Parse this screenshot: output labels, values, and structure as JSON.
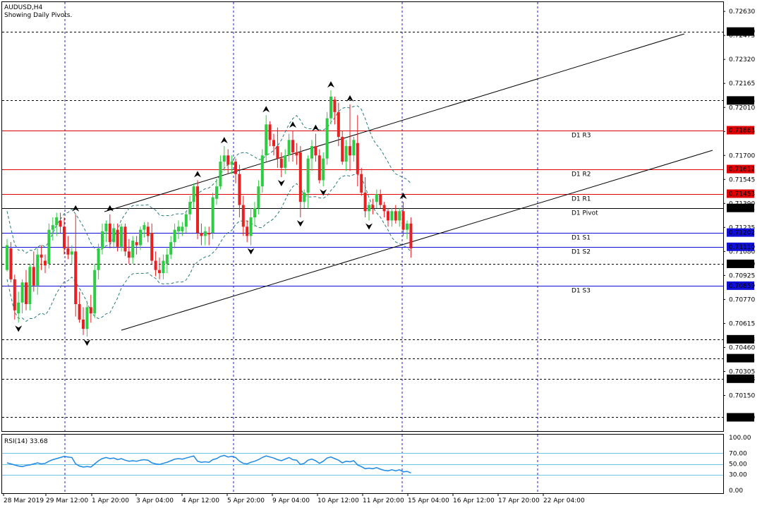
{
  "header": {
    "symbol": "AUDUSD,H4",
    "subtitle": "Showing Daily Pivots."
  },
  "indicator": {
    "label": "RSI(14) 33.68"
  },
  "colors": {
    "bull": "#2ecc40",
    "bear": "#e82020",
    "grid": "#1f1fd0",
    "channel": "#000000",
    "bands": "#2a7a7a",
    "rsi": "#1e88e5",
    "rsi_levels": "#6ec6e6",
    "tag_red": "#e00000",
    "tag_blue": "#1010d8",
    "tag_black": "#000000"
  },
  "chart_data": [
    {
      "type": "candlestick",
      "title": "AUDUSD,H4",
      "subtitle": "Showing Daily Pivots.",
      "ylim": [
        0.6992,
        0.7269
      ],
      "x_tick_labels": [
        "28 Mar 2019",
        "29 Mar 12:00",
        "1 Apr 20:00",
        "3 Apr 04:00",
        "4 Apr 12:00",
        "5 Apr 20:00",
        "9 Apr 04:00",
        "10 Apr 12:00",
        "11 Apr 20:00",
        "15 Apr 04:00",
        "16 Apr 12:00",
        "17 Apr 20:00",
        "22 Apr 04:00"
      ],
      "y_tick_labels": [
        "0.72630",
        "0.72475",
        "0.72320",
        "0.72165",
        "0.72010",
        "0.71855",
        "0.71700",
        "0.71545",
        "0.71390",
        "0.71235",
        "0.71080",
        "0.70925",
        "0.70770",
        "0.70615",
        "0.70460",
        "0.70305",
        "0.70150"
      ],
      "price_tags": [
        {
          "value": "0.72500",
          "color": "black"
        },
        {
          "value": "0.72055",
          "color": "black"
        },
        {
          "value": "0.71863",
          "color": "red"
        },
        {
          "value": "0.71612",
          "color": "red"
        },
        {
          "value": "0.71453",
          "color": "red"
        },
        {
          "value": "0.71361",
          "color": "black"
        },
        {
          "value": "0.71202",
          "color": "blue"
        },
        {
          "value": "0.71110",
          "color": "blue"
        },
        {
          "value": "0.71000",
          "color": "black"
        },
        {
          "value": "0.70859",
          "color": "blue"
        },
        {
          "value": "0.70513",
          "color": "black"
        },
        {
          "value": "0.70391",
          "color": "black"
        },
        {
          "value": "0.70258",
          "color": "black"
        },
        {
          "value": "0.70009",
          "color": "black"
        }
      ],
      "pivot_lines": [
        {
          "label": "D1 R3",
          "value": 0.71863,
          "color": "red"
        },
        {
          "label": "D1 R2",
          "value": 0.71612,
          "color": "red"
        },
        {
          "label": "D1 R1",
          "value": 0.71453,
          "color": "red"
        },
        {
          "label": "D1 Pivot",
          "value": 0.71361,
          "color": "black"
        },
        {
          "label": "D1 S1",
          "value": 0.71202,
          "color": "blue"
        },
        {
          "label": "D1 S2",
          "value": 0.7111,
          "color": "blue"
        },
        {
          "label": "D1 S3",
          "value": 0.70859,
          "color": "blue"
        }
      ],
      "level_lines": [
        0.725,
        0.72055,
        0.71,
        0.70513,
        0.70391,
        0.70258,
        0.70009
      ],
      "candles": [
        [
          0.7096,
          0.7116,
          0.7095,
          0.7112
        ],
        [
          0.711,
          0.7114,
          0.7088,
          0.709
        ],
        [
          0.709,
          0.7093,
          0.7064,
          0.707
        ],
        [
          0.7068,
          0.7082,
          0.7062,
          0.7075
        ],
        [
          0.7075,
          0.709,
          0.7068,
          0.7088
        ],
        [
          0.7088,
          0.7096,
          0.707,
          0.7074
        ],
        [
          0.7074,
          0.71,
          0.707,
          0.7098
        ],
        [
          0.7098,
          0.7108,
          0.7082,
          0.7086
        ],
        [
          0.7086,
          0.711,
          0.708,
          0.7106
        ],
        [
          0.7106,
          0.7112,
          0.7096,
          0.7104
        ],
        [
          0.7102,
          0.7106,
          0.7094,
          0.7099
        ],
        [
          0.71,
          0.7126,
          0.7097,
          0.7122
        ],
        [
          0.7122,
          0.713,
          0.7115,
          0.7125
        ],
        [
          0.7125,
          0.7133,
          0.7118,
          0.713
        ],
        [
          0.7128,
          0.7133,
          0.712,
          0.7124
        ],
        [
          0.7124,
          0.713,
          0.7106,
          0.711
        ],
        [
          0.711,
          0.7118,
          0.7103,
          0.7106
        ],
        [
          0.7106,
          0.7112,
          0.71,
          0.7108
        ],
        [
          0.7108,
          0.7132,
          0.7066,
          0.7074
        ],
        [
          0.7074,
          0.7082,
          0.7062,
          0.7064
        ],
        [
          0.7064,
          0.7072,
          0.7054,
          0.7058
        ],
        [
          0.7058,
          0.7076,
          0.7053,
          0.7072
        ],
        [
          0.7072,
          0.708,
          0.7062,
          0.7068
        ],
        [
          0.7068,
          0.71,
          0.7065,
          0.7096
        ],
        [
          0.7096,
          0.7113,
          0.709,
          0.711
        ],
        [
          0.711,
          0.7126,
          0.7106,
          0.7121
        ],
        [
          0.7121,
          0.7128,
          0.7114,
          0.7126
        ],
        [
          0.7126,
          0.7132,
          0.711,
          0.7114
        ],
        [
          0.7114,
          0.7126,
          0.711,
          0.7123
        ],
        [
          0.7122,
          0.7126,
          0.7108,
          0.7111
        ],
        [
          0.7111,
          0.7126,
          0.7108,
          0.7124
        ],
        [
          0.7124,
          0.7126,
          0.7105,
          0.7108
        ],
        [
          0.7108,
          0.7116,
          0.71,
          0.7104
        ],
        [
          0.7104,
          0.7118,
          0.71,
          0.7115
        ],
        [
          0.7114,
          0.7118,
          0.7106,
          0.7112
        ],
        [
          0.7112,
          0.7124,
          0.7109,
          0.7122
        ],
        [
          0.7122,
          0.7127,
          0.7117,
          0.7125
        ],
        [
          0.7124,
          0.7127,
          0.7114,
          0.7118
        ],
        [
          0.712,
          0.7126,
          0.71,
          0.7102
        ],
        [
          0.7102,
          0.7108,
          0.7092,
          0.7096
        ],
        [
          0.7096,
          0.7104,
          0.709,
          0.7094
        ],
        [
          0.7094,
          0.7106,
          0.709,
          0.7102
        ],
        [
          0.71,
          0.711,
          0.7094,
          0.7106
        ],
        [
          0.7106,
          0.7118,
          0.7103,
          0.7114
        ],
        [
          0.7114,
          0.7126,
          0.711,
          0.7122
        ],
        [
          0.7121,
          0.7128,
          0.7116,
          0.7124
        ],
        [
          0.7121,
          0.7127,
          0.7118,
          0.7124
        ],
        [
          0.7124,
          0.7134,
          0.712,
          0.7132
        ],
        [
          0.7132,
          0.7144,
          0.7128,
          0.714
        ],
        [
          0.714,
          0.7152,
          0.7136,
          0.715
        ],
        [
          0.715,
          0.7154,
          0.7116,
          0.712
        ],
        [
          0.712,
          0.7126,
          0.7112,
          0.7118
        ],
        [
          0.7118,
          0.7124,
          0.7112,
          0.7121
        ],
        [
          0.712,
          0.7124,
          0.7112,
          0.7119
        ],
        [
          0.712,
          0.7146,
          0.7116,
          0.7143
        ],
        [
          0.7142,
          0.7155,
          0.7138,
          0.715
        ],
        [
          0.715,
          0.717,
          0.7148,
          0.7166
        ],
        [
          0.7166,
          0.7176,
          0.716,
          0.717
        ],
        [
          0.717,
          0.7174,
          0.7158,
          0.7164
        ],
        [
          0.7164,
          0.717,
          0.7158,
          0.7166
        ],
        [
          0.7166,
          0.7168,
          0.7152,
          0.7158
        ],
        [
          0.7158,
          0.7164,
          0.713,
          0.7138
        ],
        [
          0.7138,
          0.7144,
          0.7118,
          0.7124
        ],
        [
          0.7124,
          0.7128,
          0.7114,
          0.7118
        ],
        [
          0.7118,
          0.7136,
          0.7112,
          0.713
        ],
        [
          0.713,
          0.714,
          0.7124,
          0.7136
        ],
        [
          0.7136,
          0.7154,
          0.7132,
          0.715
        ],
        [
          0.715,
          0.7174,
          0.7146,
          0.717
        ],
        [
          0.717,
          0.7196,
          0.7166,
          0.719
        ],
        [
          0.719,
          0.7192,
          0.7176,
          0.718
        ],
        [
          0.718,
          0.7184,
          0.717,
          0.7176
        ],
        [
          0.7176,
          0.7188,
          0.7162,
          0.7168
        ],
        [
          0.7168,
          0.7172,
          0.7156,
          0.7162
        ],
        [
          0.7162,
          0.7174,
          0.7158,
          0.717
        ],
        [
          0.717,
          0.7184,
          0.7166,
          0.718
        ],
        [
          0.718,
          0.7186,
          0.7166,
          0.7172
        ],
        [
          0.7172,
          0.7178,
          0.7164,
          0.717
        ],
        [
          0.7172,
          0.7176,
          0.713,
          0.714
        ],
        [
          0.714,
          0.7148,
          0.7136,
          0.7146
        ],
        [
          0.7146,
          0.717,
          0.7136,
          0.7168
        ],
        [
          0.7168,
          0.718,
          0.716,
          0.7176
        ],
        [
          0.7176,
          0.7184,
          0.7166,
          0.717
        ],
        [
          0.717,
          0.7174,
          0.7152,
          0.7154
        ],
        [
          0.7154,
          0.7172,
          0.715,
          0.7168
        ],
        [
          0.7168,
          0.7198,
          0.7164,
          0.7194
        ],
        [
          0.7194,
          0.7212,
          0.719,
          0.7208
        ],
        [
          0.7206,
          0.7208,
          0.719,
          0.7198
        ],
        [
          0.7198,
          0.7204,
          0.7176,
          0.7182
        ],
        [
          0.7182,
          0.7186,
          0.7164,
          0.7166
        ],
        [
          0.7166,
          0.718,
          0.716,
          0.7176
        ],
        [
          0.7176,
          0.7203,
          0.716,
          0.717
        ],
        [
          0.717,
          0.7182,
          0.7166,
          0.718
        ],
        [
          0.7178,
          0.7196,
          0.715,
          0.7158
        ],
        [
          0.7158,
          0.7162,
          0.7144,
          0.7146
        ],
        [
          0.7146,
          0.7156,
          0.713,
          0.7134
        ],
        [
          0.7134,
          0.714,
          0.7128,
          0.7138
        ],
        [
          0.7138,
          0.7142,
          0.7132,
          0.7136
        ],
        [
          0.714,
          0.7148,
          0.7136,
          0.7145
        ],
        [
          0.7145,
          0.7148,
          0.7136,
          0.7138
        ],
        [
          0.7138,
          0.714,
          0.713,
          0.7134
        ],
        [
          0.7134,
          0.7136,
          0.7124,
          0.7128
        ],
        [
          0.7128,
          0.7136,
          0.7124,
          0.7134
        ],
        [
          0.7134,
          0.7138,
          0.7126,
          0.7128
        ],
        [
          0.7128,
          0.7136,
          0.7124,
          0.7134
        ],
        [
          0.7134,
          0.714,
          0.7118,
          0.7122
        ],
        [
          0.7122,
          0.7128,
          0.7116,
          0.7126
        ],
        [
          0.7126,
          0.713,
          0.7104,
          0.711
        ]
      ]
    },
    {
      "type": "line",
      "title": "RSI(14) 33.68",
      "ylim": [
        -5,
        105
      ],
      "y_tick_labels": [
        "100.00",
        "70.00",
        "50.00",
        "30.00",
        "0.00"
      ],
      "levels": [
        70,
        50,
        30
      ],
      "values": [
        52,
        50,
        48,
        46,
        45,
        47,
        48,
        50,
        52,
        50,
        51,
        55,
        58,
        60,
        62,
        64,
        63,
        62,
        50,
        46,
        44,
        45,
        44,
        50,
        56,
        60,
        62,
        60,
        61,
        58,
        60,
        57,
        55,
        56,
        55,
        57,
        58,
        57,
        52,
        50,
        49,
        51,
        53,
        56,
        59,
        60,
        59,
        61,
        63,
        65,
        55,
        53,
        54,
        53,
        58,
        60,
        64,
        66,
        63,
        64,
        62,
        55,
        51,
        50,
        53,
        55,
        58,
        62,
        65,
        63,
        61,
        58,
        56,
        59,
        62,
        58,
        57,
        49,
        51,
        57,
        59,
        56,
        51,
        55,
        61,
        63,
        60,
        57,
        52,
        55,
        54,
        56,
        48,
        45,
        41,
        42,
        41,
        43,
        40,
        38,
        37,
        39,
        37,
        39,
        35,
        36,
        33
      ]
    }
  ]
}
